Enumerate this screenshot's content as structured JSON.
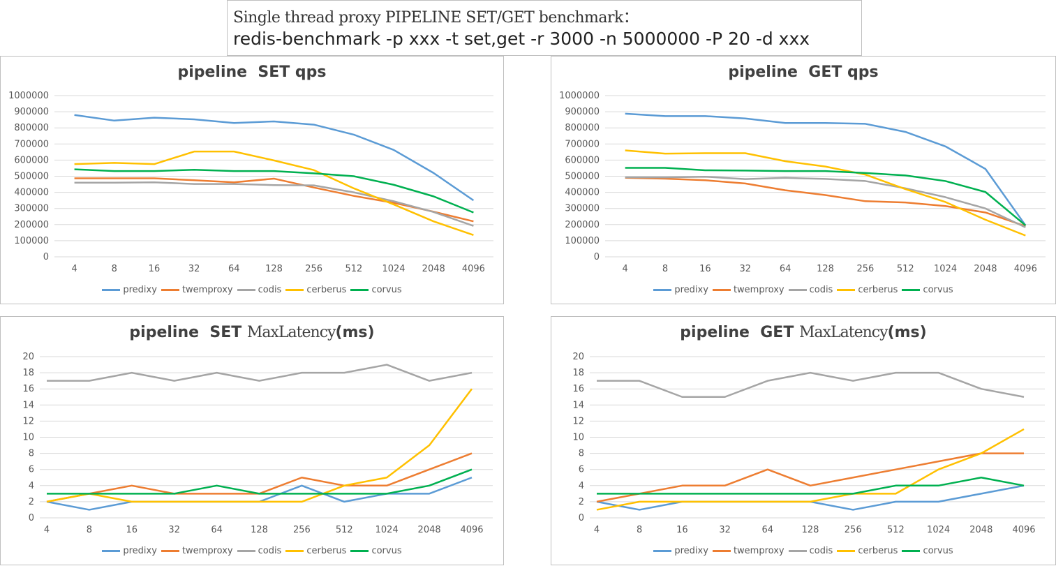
{
  "header": {
    "line1": "Single thread proxy PIPELINE SET/GET benchmark：",
    "line2": "redis-benchmark -p xxx -t set,get -r 3000 -n 5000000 -P 20 -d xxx"
  },
  "colors": {
    "predixy": "#5b9bd5",
    "twemproxy": "#ed7d31",
    "codis": "#a5a5a5",
    "cerberus": "#ffc000",
    "corvus": "#00b050"
  },
  "chart_data": [
    {
      "id": "set-qps",
      "type": "line",
      "title_parts": [
        "pipeline  SET qps"
      ],
      "categories": [
        "4",
        "8",
        "16",
        "32",
        "64",
        "128",
        "256",
        "512",
        "1024",
        "2048",
        "4096"
      ],
      "ylim": [
        0,
        1000000
      ],
      "yticks": [
        "0",
        "100000",
        "200000",
        "300000",
        "400000",
        "500000",
        "600000",
        "700000",
        "800000",
        "900000",
        "1000000"
      ],
      "grid": true,
      "legend": "bottom",
      "series": [
        {
          "name": "predixy",
          "values": [
            880000,
            845000,
            863000,
            853000,
            830000,
            840000,
            820000,
            758000,
            663000,
            520000,
            350000
          ]
        },
        {
          "name": "twemproxy",
          "values": [
            487000,
            487000,
            487000,
            475000,
            462000,
            485000,
            430000,
            378000,
            335000,
            280000,
            220000
          ]
        },
        {
          "name": "codis",
          "values": [
            460000,
            460000,
            462000,
            452000,
            452000,
            445000,
            443000,
            400000,
            345000,
            278000,
            192000
          ]
        },
        {
          "name": "cerberus",
          "values": [
            575000,
            583000,
            575000,
            653000,
            653000,
            598000,
            538000,
            425000,
            325000,
            220000,
            135000
          ]
        },
        {
          "name": "corvus",
          "values": [
            543000,
            532000,
            532000,
            540000,
            532000,
            532000,
            518000,
            500000,
            447000,
            375000,
            275000
          ]
        }
      ]
    },
    {
      "id": "get-qps",
      "type": "line",
      "title_parts": [
        "pipeline  GET qps"
      ],
      "categories": [
        "4",
        "8",
        "16",
        "32",
        "64",
        "128",
        "256",
        "512",
        "1024",
        "2048",
        "4096"
      ],
      "ylim": [
        0,
        1000000
      ],
      "yticks": [
        "0",
        "100000",
        "200000",
        "300000",
        "400000",
        "500000",
        "600000",
        "700000",
        "800000",
        "900000",
        "1000000"
      ],
      "grid": true,
      "legend": "bottom",
      "series": [
        {
          "name": "predixy",
          "values": [
            888000,
            873000,
            873000,
            858000,
            830000,
            830000,
            825000,
            775000,
            685000,
            545000,
            195000
          ]
        },
        {
          "name": "twemproxy",
          "values": [
            490000,
            485000,
            475000,
            455000,
            413000,
            383000,
            345000,
            337000,
            315000,
            275000,
            190000
          ]
        },
        {
          "name": "codis",
          "values": [
            493000,
            493000,
            497000,
            482000,
            490000,
            483000,
            470000,
            425000,
            370000,
            300000,
            183000
          ]
        },
        {
          "name": "cerberus",
          "values": [
            660000,
            640000,
            643000,
            643000,
            593000,
            560000,
            510000,
            420000,
            340000,
            230000,
            132000
          ]
        },
        {
          "name": "corvus",
          "values": [
            552000,
            552000,
            537000,
            535000,
            532000,
            532000,
            520000,
            505000,
            470000,
            402000,
            195000
          ]
        }
      ]
    },
    {
      "id": "set-lat",
      "type": "line",
      "title_parts": [
        "pipeline  SET ",
        "MaxLatency",
        "(ms)"
      ],
      "categories": [
        "4",
        "8",
        "16",
        "32",
        "64",
        "128",
        "256",
        "512",
        "1024",
        "2048",
        "4096"
      ],
      "ylim": [
        0,
        20
      ],
      "yticks": [
        "0",
        "2",
        "4",
        "6",
        "8",
        "10",
        "12",
        "14",
        "16",
        "18",
        "20"
      ],
      "grid": true,
      "legend": "bottom",
      "series": [
        {
          "name": "predixy",
          "values": [
            2,
            1,
            2,
            2,
            2,
            2,
            4,
            2,
            3,
            3,
            5
          ]
        },
        {
          "name": "twemproxy",
          "values": [
            2,
            3,
            4,
            3,
            3,
            3,
            5,
            4,
            4,
            6,
            8
          ]
        },
        {
          "name": "codis",
          "values": [
            17,
            17,
            18,
            17,
            18,
            17,
            18,
            18,
            19,
            17,
            18
          ]
        },
        {
          "name": "cerberus",
          "values": [
            2,
            3,
            2,
            2,
            2,
            2,
            2,
            4,
            5,
            9,
            16
          ]
        },
        {
          "name": "corvus",
          "values": [
            3,
            3,
            3,
            3,
            4,
            3,
            3,
            3,
            3,
            4,
            6
          ]
        }
      ]
    },
    {
      "id": "get-lat",
      "type": "line",
      "title_parts": [
        "pipeline  GET ",
        "MaxLatency",
        "(ms)"
      ],
      "categories": [
        "4",
        "8",
        "16",
        "32",
        "64",
        "128",
        "256",
        "512",
        "1024",
        "2048",
        "4096"
      ],
      "ylim": [
        0,
        20
      ],
      "yticks": [
        "0",
        "2",
        "4",
        "6",
        "8",
        "10",
        "12",
        "14",
        "16",
        "18",
        "20"
      ],
      "grid": true,
      "legend": "bottom",
      "series": [
        {
          "name": "predixy",
          "values": [
            2,
            1,
            2,
            2,
            2,
            2,
            1,
            2,
            2,
            3,
            4
          ]
        },
        {
          "name": "twemproxy",
          "values": [
            2,
            3,
            4,
            4,
            6,
            4,
            5,
            6,
            7,
            8,
            8
          ]
        },
        {
          "name": "codis",
          "values": [
            17,
            17,
            15,
            15,
            17,
            18,
            17,
            18,
            18,
            16,
            15
          ]
        },
        {
          "name": "cerberus",
          "values": [
            1,
            2,
            2,
            2,
            2,
            2,
            3,
            3,
            6,
            8,
            11
          ]
        },
        {
          "name": "corvus",
          "values": [
            3,
            3,
            3,
            3,
            3,
            3,
            3,
            4,
            4,
            5,
            4
          ]
        }
      ]
    }
  ]
}
